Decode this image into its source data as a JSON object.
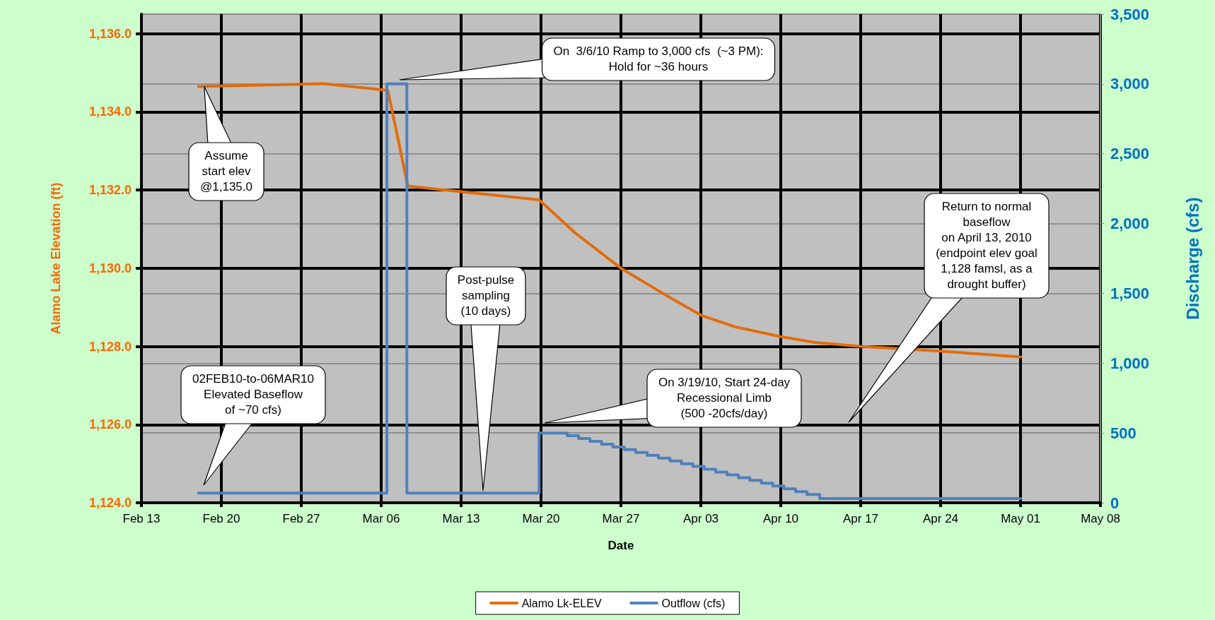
{
  "chart_data": {
    "type": "line",
    "xlabel": "Date",
    "ylabel": "Alamo Lake Elevation (ft)",
    "y2label": "Discharge (cfs)",
    "xlim": [
      "2010-02-13",
      "2010-05-08"
    ],
    "xticks": [
      {
        "value": "2010-02-13",
        "label": "Feb 13"
      },
      {
        "value": "2010-02-20",
        "label": "Feb 20"
      },
      {
        "value": "2010-02-27",
        "label": "Feb 27"
      },
      {
        "value": "2010-03-06",
        "label": "Mar 06"
      },
      {
        "value": "2010-03-13",
        "label": "Mar 13"
      },
      {
        "value": "2010-03-20",
        "label": "Mar 20"
      },
      {
        "value": "2010-03-27",
        "label": "Mar 27"
      },
      {
        "value": "2010-04-03",
        "label": "Apr 03"
      },
      {
        "value": "2010-04-10",
        "label": "Apr 10"
      },
      {
        "value": "2010-04-17",
        "label": "Apr 17"
      },
      {
        "value": "2010-04-24",
        "label": "Apr 24"
      },
      {
        "value": "2010-05-01",
        "label": "May 01"
      },
      {
        "value": "2010-05-08",
        "label": "May 08"
      }
    ],
    "ylim": [
      1124,
      1136.5
    ],
    "yticks": [
      {
        "value": 1124,
        "label": "1,124.0"
      },
      {
        "value": 1126,
        "label": "1,126.0"
      },
      {
        "value": 1128,
        "label": "1,128.0"
      },
      {
        "value": 1130,
        "label": "1,130.0"
      },
      {
        "value": 1132,
        "label": "1,132.0"
      },
      {
        "value": 1134,
        "label": "1,134.0"
      },
      {
        "value": 1136,
        "label": "1,136.0"
      }
    ],
    "y2lim": [
      0,
      3500
    ],
    "y2ticks": [
      0,
      {
        "value": 500,
        "label": "500"
      },
      {
        "value": 1000,
        "label": "1,000"
      },
      {
        "value": 1500,
        "label": "1,500"
      },
      {
        "value": 2000,
        "label": "2,000"
      },
      {
        "value": 2500,
        "label": "2,500"
      },
      {
        "value": 3000,
        "label": "3,000"
      },
      {
        "value": 3500,
        "label": "3,500"
      }
    ],
    "grid": true,
    "legend": "bottom",
    "marker": "none",
    "series": [
      {
        "name": "Alamo Lk-ELEV",
        "color": "#e36c09",
        "x": [
          "2010-02-18",
          "2010-03-01",
          "2010-03-06T14:00",
          "2010-03-08T08:00",
          "2010-03-19T20:00",
          "2010-03-23",
          "2010-03-27",
          "2010-03-31",
          "2010-04-03",
          "2010-04-06",
          "2010-04-10",
          "2010-04-13",
          "2010-04-17",
          "2010-04-24",
          "2010-05-01"
        ],
        "values": [
          1134.65,
          1134.72,
          1134.55,
          1132.1,
          1131.75,
          1130.9,
          1130.0,
          1129.3,
          1128.8,
          1128.5,
          1128.25,
          1128.1,
          1128.0,
          1127.88,
          1127.73
        ]
      },
      {
        "name": "Outflow (cfs)",
        "type": "step",
        "axis": "y2",
        "color": "#4f81bd",
        "x": [
          "2010-02-18",
          "2010-03-06T12:00",
          "2010-03-08T06:00",
          "2010-03-19T20:00",
          "2010-03-22T07:00",
          "2010-03-23T07:00",
          "2010-03-24T07:00",
          "2010-03-25T07:00",
          "2010-03-26T07:00",
          "2010-03-27T07:00",
          "2010-03-28T07:00",
          "2010-03-29T07:00",
          "2010-03-30T07:00",
          "2010-03-31T07:00",
          "2010-04-01T07:00",
          "2010-04-02T07:00",
          "2010-04-03T07:00",
          "2010-04-04T07:00",
          "2010-04-05T07:00",
          "2010-04-06T07:00",
          "2010-04-07T07:00",
          "2010-04-08T07:00",
          "2010-04-09T07:00",
          "2010-04-10T07:00",
          "2010-04-11T07:00",
          "2010-04-12T07:00",
          "2010-04-13T10:00",
          "2010-05-01"
        ],
        "values": [
          70,
          3000,
          70,
          500,
          480,
          460,
          440,
          420,
          400,
          380,
          360,
          340,
          320,
          300,
          280,
          260,
          240,
          220,
          200,
          180,
          160,
          140,
          120,
          100,
          80,
          60,
          30,
          30
        ]
      }
    ],
    "annotations": [
      {
        "text": "Assume\nstart elev\n@1,135.0",
        "x": "2010-02-18T12:00",
        "y": 1134.65
      },
      "On  3/6/10 Ramp to 3,000 cfs  (~3 PM):\nHold for ~36 hours",
      "02FEB10-to-06MAR10\nElevated Baseflow\nof ~70 cfs)",
      "Post-pulse\nsampling\n(10 days)",
      "On 3/19/10, Start 24-day\nRecessional Limb\n(500 -20cfs/day)",
      "Return to normal\nbaseflow\non April 13, 2010\n(endpoint elev goal\n1,128 famsl, as a\ndrought buffer)"
    ]
  }
}
